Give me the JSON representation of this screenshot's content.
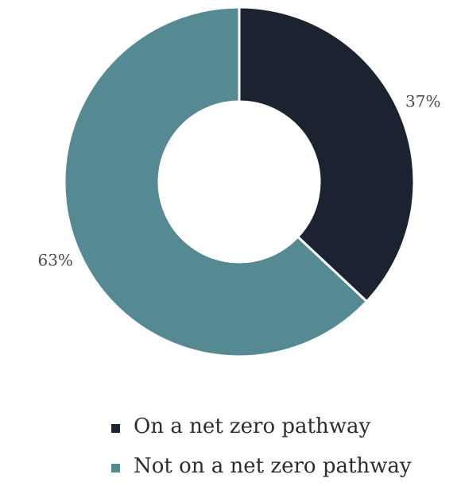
{
  "chart_data": {
    "type": "pie",
    "variant": "donut",
    "categories": [
      "On a net zero pathway",
      "Not on a net zero pathway"
    ],
    "values": [
      37,
      63
    ],
    "labels": [
      "37%",
      "63%"
    ],
    "colors": [
      "#1b2330",
      "#558a92"
    ],
    "legend_position": "bottom",
    "title": ""
  },
  "legend": {
    "items": [
      {
        "label": "On a net zero pathway",
        "color": "#1b2330"
      },
      {
        "label": "Not on a net zero pathway",
        "color": "#558a92"
      }
    ]
  }
}
